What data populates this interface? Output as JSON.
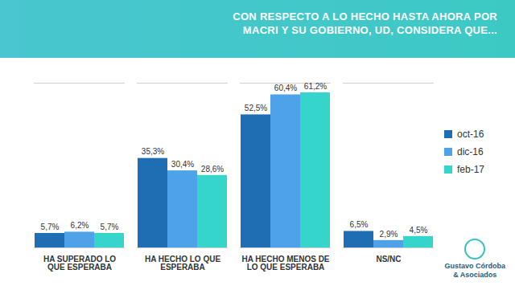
{
  "chart_data": {
    "type": "bar",
    "title": "CON RESPECTO A LO HECHO HASTA AHORA POR MACRI Y SU GOBIERNO, UD, CONSIDERA QUE...",
    "categories": [
      "HA SUPERADO LO QUE ESPERABA",
      "HA HECHO LO QUE ESPERABA",
      "HA HECHO MENOS DE LO QUE ESPERABA",
      "NS/NC"
    ],
    "series": [
      {
        "name": "oct-16",
        "color": "#1f6db3",
        "values": [
          5.7,
          35.3,
          52.5,
          6.5
        ],
        "value_labels": [
          "5,7%",
          "35,3%",
          "52,5%",
          "6,5%"
        ]
      },
      {
        "name": "dic-16",
        "color": "#4ea3e8",
        "values": [
          6.2,
          30.4,
          60.4,
          2.9
        ],
        "value_labels": [
          "6,2%",
          "30,4%",
          "60,4%",
          "2,9%"
        ]
      },
      {
        "name": "feb-17",
        "color": "#35d5cb",
        "values": [
          5.7,
          28.6,
          61.2,
          4.5
        ],
        "value_labels": [
          "5,7%",
          "28,6%",
          "61,2%",
          "4,5%"
        ]
      }
    ],
    "ylim": [
      0,
      65
    ],
    "yticks": [
      0,
      65
    ],
    "tick_labels": "x",
    "data_labels": true,
    "legend": "right",
    "logo": {
      "name": "Gustavo Córdoba",
      "sub": "& Asociados"
    }
  }
}
